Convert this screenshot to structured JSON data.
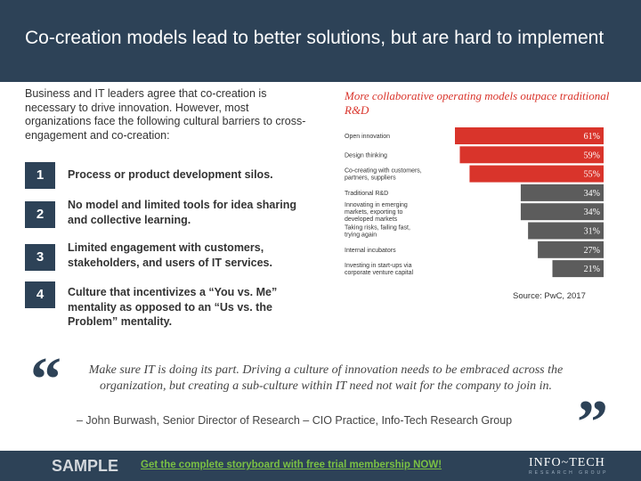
{
  "header": {
    "title": "Co-creation models lead to better solutions, but are hard to implement"
  },
  "intro": "Business and IT leaders agree that co-creation is necessary to drive innovation. However, most organizations face the following cultural barriers to cross-engagement and co-creation:",
  "barriers": [
    {
      "number": "1",
      "text": "Process or product development silos."
    },
    {
      "number": "2",
      "text": "No model and limited tools for idea sharing and collective learning."
    },
    {
      "number": "3",
      "text": "Limited engagement with customers, stakeholders, and users of IT services."
    },
    {
      "number": "4",
      "text": "Culture that incentivizes a “You vs. Me” mentality as opposed to an “Us vs. the Problem” mentality."
    }
  ],
  "chart_data": {
    "type": "bar",
    "orientation": "horizontal",
    "title": "More collaborative operating models outpace traditional R&D",
    "categories": [
      "Open innovation",
      "Design thinking",
      "Co-creating with customers, partners, suppliers",
      "Traditional R&D",
      "Innovating in emerging markets, exporting to developed markets",
      "Taking risks, failing fast, trying again",
      "Internal incubators",
      "Investing in start-ups via corporate venture capital"
    ],
    "values": [
      61,
      59,
      55,
      34,
      34,
      31,
      27,
      21
    ],
    "labels": [
      "61%",
      "59%",
      "55%",
      "34%",
      "34%",
      "31%",
      "27%",
      "21%"
    ],
    "colors": [
      "#d9342b",
      "#d9342b",
      "#d9342b",
      "#5c5c5c",
      "#5c5c5c",
      "#5c5c5c",
      "#5c5c5c",
      "#5c5c5c"
    ],
    "xlim": [
      0,
      61
    ],
    "grid": false,
    "legend": "none"
  },
  "source": "Source: PwC, 2017",
  "quote": {
    "text": "Make sure IT is doing its part. Driving a culture of innovation needs to be embraced across the organization, but creating a sub-culture within IT need not wait for the company to join in.",
    "attribution": "– John Burwash, Senior Director of Research – CIO Practice, Info-Tech Research Group"
  },
  "footer": {
    "sample": "SAMPLE",
    "cta": "Get the complete storyboard with free trial membership NOW!",
    "logo_main": "INFO~TECH",
    "logo_sub": "RESEARCH GROUP"
  },
  "colors": {
    "header_bg": "#2d4257",
    "accent_red": "#d9342b",
    "bar_gray": "#5c5c5c",
    "cta_green": "#7ac043"
  }
}
